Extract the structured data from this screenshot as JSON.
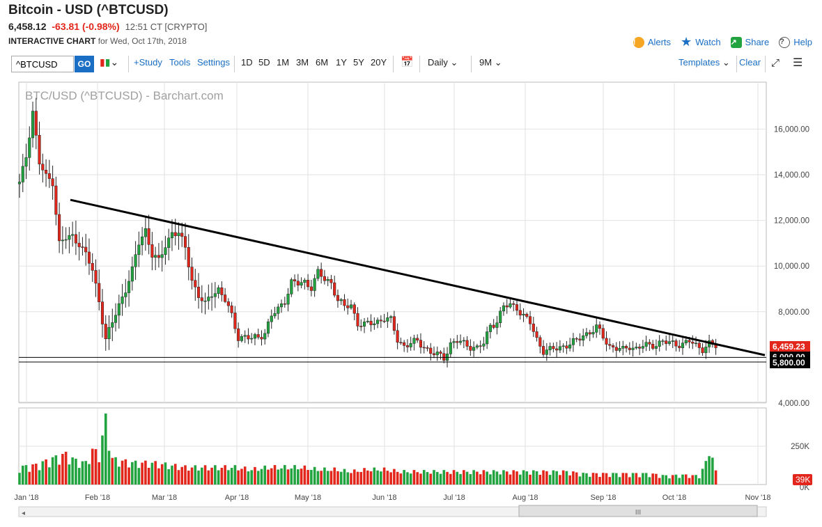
{
  "header": {
    "title": "Bitcoin - USD (^BTCUSD)",
    "last": "6,458.12",
    "change": "-63.81 (-0.98%)",
    "time": "12:51 CT [CRYPTO]",
    "chart_label": "INTERACTIVE CHART",
    "for_date": "for Wed, Oct 17th, 2018",
    "alerts": "Alerts",
    "watch": "Watch",
    "share": "Share",
    "help": "Help"
  },
  "toolbar": {
    "symbol": "^BTCUSD",
    "go": "GO",
    "study": "+Study",
    "tools": "Tools",
    "settings": "Settings",
    "periods": [
      "1D",
      "5D",
      "1M",
      "3M",
      "6M",
      "1Y",
      "5Y",
      "20Y"
    ],
    "interval": "Daily",
    "range": "9M",
    "templates": "Templates",
    "clear": "Clear"
  },
  "colors": {
    "up": "#21a33f",
    "down": "#e3261b",
    "link": "#1a6fc4",
    "price_tag": "#e3261b"
  },
  "chart_data": {
    "type": "candlestick",
    "watermark": "BTC/USD (^BTCUSD) - Barchart.com",
    "x_labels": [
      "Jan '18",
      "Feb '18",
      "Mar '18",
      "Apr '18",
      "May '18",
      "Jun '18",
      "Jul '18",
      "Aug '18",
      "Sep '18",
      "Oct '18",
      "Nov '18"
    ],
    "y_ticks": [
      "16,000.00",
      "14,000.00",
      "12,000.00",
      "10,000.00",
      "8,000.00",
      "6,000.00",
      "4,000.00"
    ],
    "ylim": [
      4000,
      17500
    ],
    "volume_ticks": [
      "250K",
      "0K"
    ],
    "last_price_label": "6,459.23",
    "support_labels": [
      "6,000.00",
      "5,800.00"
    ],
    "volume_label": "39K",
    "trendline": {
      "start": [
        "Jan 22 '18",
        12900
      ],
      "end": [
        "Oct 31 '18",
        6100
      ]
    },
    "support_lines": [
      6000,
      5800
    ],
    "price_anchors": [
      [
        0,
        13600
      ],
      [
        2,
        14800
      ],
      [
        4,
        16800
      ],
      [
        6,
        14500
      ],
      [
        8,
        13900
      ],
      [
        10,
        13700
      ],
      [
        12,
        11000
      ],
      [
        14,
        11200
      ],
      [
        16,
        11300
      ],
      [
        18,
        11000
      ],
      [
        20,
        10500
      ],
      [
        22,
        9800
      ],
      [
        24,
        8500
      ],
      [
        26,
        6800
      ],
      [
        28,
        7500
      ],
      [
        30,
        8300
      ],
      [
        32,
        9000
      ],
      [
        34,
        9800
      ],
      [
        36,
        11000
      ],
      [
        38,
        11600
      ],
      [
        40,
        10500
      ],
      [
        42,
        10200
      ],
      [
        44,
        10900
      ],
      [
        46,
        11500
      ],
      [
        48,
        11400
      ],
      [
        50,
        10800
      ],
      [
        52,
        9400
      ],
      [
        54,
        8700
      ],
      [
        56,
        8300
      ],
      [
        58,
        8800
      ],
      [
        60,
        9000
      ],
      [
        62,
        8500
      ],
      [
        64,
        7800
      ],
      [
        66,
        6900
      ],
      [
        68,
        6900
      ],
      [
        70,
        6800
      ],
      [
        72,
        6900
      ],
      [
        74,
        7100
      ],
      [
        76,
        7800
      ],
      [
        78,
        8100
      ],
      [
        80,
        8500
      ],
      [
        82,
        9300
      ],
      [
        84,
        9200
      ],
      [
        86,
        9300
      ],
      [
        88,
        9100
      ],
      [
        90,
        9700
      ],
      [
        92,
        9400
      ],
      [
        94,
        9300
      ],
      [
        96,
        8500
      ],
      [
        98,
        8200
      ],
      [
        100,
        8300
      ],
      [
        102,
        7500
      ],
      [
        104,
        7400
      ],
      [
        106,
        7500
      ],
      [
        108,
        7600
      ],
      [
        110,
        7700
      ],
      [
        112,
        7600
      ],
      [
        114,
        6800
      ],
      [
        116,
        6500
      ],
      [
        118,
        6600
      ],
      [
        120,
        6700
      ],
      [
        122,
        6500
      ],
      [
        124,
        6200
      ],
      [
        126,
        6100
      ],
      [
        128,
        6000
      ],
      [
        130,
        6600
      ],
      [
        132,
        6700
      ],
      [
        134,
        6600
      ],
      [
        136,
        6500
      ],
      [
        138,
        6400
      ],
      [
        140,
        6600
      ],
      [
        142,
        7400
      ],
      [
        144,
        7600
      ],
      [
        146,
        8200
      ],
      [
        148,
        8300
      ],
      [
        150,
        8200
      ],
      [
        152,
        7800
      ],
      [
        154,
        7500
      ],
      [
        156,
        6800
      ],
      [
        158,
        6300
      ],
      [
        160,
        6300
      ],
      [
        162,
        6400
      ],
      [
        164,
        6500
      ],
      [
        166,
        6600
      ],
      [
        168,
        6700
      ],
      [
        170,
        7000
      ],
      [
        172,
        7100
      ],
      [
        174,
        7300
      ],
      [
        176,
        6900
      ],
      [
        178,
        6500
      ],
      [
        180,
        6400
      ],
      [
        182,
        6300
      ],
      [
        184,
        6500
      ],
      [
        186,
        6400
      ],
      [
        188,
        6500
      ],
      [
        190,
        6500
      ],
      [
        192,
        6600
      ],
      [
        194,
        6700
      ],
      [
        196,
        6600
      ],
      [
        198,
        6600
      ],
      [
        200,
        6600
      ],
      [
        202,
        6700
      ],
      [
        204,
        6500
      ],
      [
        206,
        6400
      ],
      [
        208,
        6600
      ],
      [
        210,
        6460
      ]
    ],
    "volume_anchors": [
      [
        0,
        40
      ],
      [
        5,
        45
      ],
      [
        10,
        60
      ],
      [
        14,
        70
      ],
      [
        17,
        55
      ],
      [
        20,
        50
      ],
      [
        22,
        80
      ],
      [
        24,
        70
      ],
      [
        26,
        150
      ],
      [
        28,
        60
      ],
      [
        30,
        55
      ],
      [
        35,
        50
      ],
      [
        40,
        50
      ],
      [
        45,
        45
      ],
      [
        50,
        40
      ],
      [
        55,
        40
      ],
      [
        60,
        40
      ],
      [
        62,
        40
      ],
      [
        65,
        40
      ],
      [
        70,
        35
      ],
      [
        75,
        40
      ],
      [
        80,
        40
      ],
      [
        85,
        40
      ],
      [
        90,
        35
      ],
      [
        95,
        35
      ],
      [
        100,
        30
      ],
      [
        105,
        35
      ],
      [
        110,
        35
      ],
      [
        115,
        30
      ],
      [
        120,
        30
      ],
      [
        125,
        30
      ],
      [
        130,
        30
      ],
      [
        135,
        30
      ],
      [
        140,
        30
      ],
      [
        145,
        30
      ],
      [
        150,
        30
      ],
      [
        155,
        30
      ],
      [
        160,
        30
      ],
      [
        165,
        30
      ],
      [
        170,
        25
      ],
      [
        175,
        25
      ],
      [
        180,
        25
      ],
      [
        185,
        25
      ],
      [
        190,
        25
      ],
      [
        195,
        20
      ],
      [
        200,
        22
      ],
      [
        205,
        20
      ],
      [
        207,
        50
      ],
      [
        208,
        90
      ],
      [
        210,
        30
      ]
    ]
  }
}
